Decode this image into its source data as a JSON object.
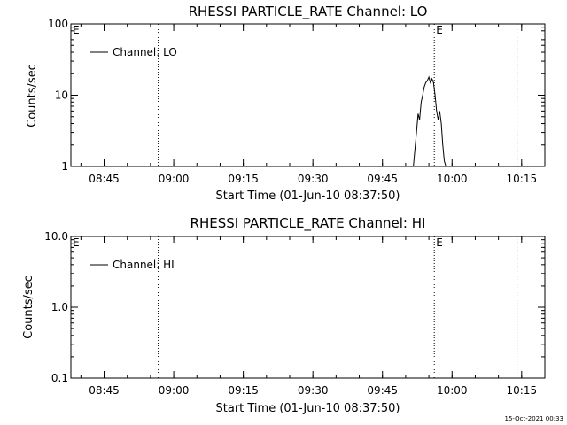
{
  "footer_timestamp": "15-Oct-2021 00:33",
  "chart_data": [
    {
      "type": "line",
      "title": "RHESSI PARTICLE_RATE Channel: LO",
      "xlabel": "Start Time (01-Jun-10 08:37:50)",
      "ylabel": "Counts/sec",
      "yscale": "log",
      "ylim": [
        1,
        100
      ],
      "y_ticks": [
        {
          "value": 1,
          "label": "1"
        },
        {
          "value": 10,
          "label": "10"
        },
        {
          "value": 100,
          "label": "100"
        }
      ],
      "xlim": [
        "08:37:50",
        "10:20:00"
      ],
      "x_ticks": [
        "08:45",
        "09:00",
        "09:15",
        "09:30",
        "09:45",
        "10:00",
        "10:15"
      ],
      "vlines": [
        {
          "x": "08:56:40",
          "label": ""
        },
        {
          "x": "09:56:10",
          "label": "E"
        },
        {
          "x": "10:14:00",
          "label": ""
        }
      ],
      "corner_label": "E",
      "legend_position": "top-left",
      "series": [
        {
          "name": "Channel: LO",
          "x": [
            "09:51:40",
            "09:52:20",
            "09:52:40",
            "09:53:00",
            "09:53:20",
            "09:53:40",
            "09:54:00",
            "09:54:20",
            "09:54:40",
            "09:55:00",
            "09:55:20",
            "09:55:40",
            "09:56:00",
            "09:56:20",
            "09:56:40",
            "09:57:00",
            "09:57:20",
            "09:57:40",
            "09:58:00",
            "09:58:20",
            "09:58:40"
          ],
          "y": [
            1.0,
            3.0,
            5.5,
            4.5,
            8.0,
            10.0,
            13.0,
            15.0,
            16.0,
            18.0,
            15.0,
            17.0,
            15.0,
            10.0,
            6.0,
            4.5,
            6.0,
            4.0,
            2.0,
            1.2,
            1.0
          ]
        }
      ]
    },
    {
      "type": "line",
      "title": "RHESSI PARTICLE_RATE Channel: HI",
      "xlabel": "Start Time (01-Jun-10 08:37:50)",
      "ylabel": "Counts/sec",
      "yscale": "log",
      "ylim": [
        0.1,
        10
      ],
      "y_ticks": [
        {
          "value": 0.1,
          "label": "0.1"
        },
        {
          "value": 1,
          "label": "1.0"
        },
        {
          "value": 10,
          "label": "10.0"
        }
      ],
      "xlim": [
        "08:37:50",
        "10:20:00"
      ],
      "x_ticks": [
        "08:45",
        "09:00",
        "09:15",
        "09:30",
        "09:45",
        "10:00",
        "10:15"
      ],
      "vlines": [
        {
          "x": "08:56:40",
          "label": ""
        },
        {
          "x": "09:56:10",
          "label": "E"
        },
        {
          "x": "10:14:00",
          "label": ""
        }
      ],
      "corner_label": "E",
      "legend_position": "top-left",
      "series": [
        {
          "name": "Channel: HI",
          "x": [],
          "y": []
        }
      ]
    }
  ]
}
